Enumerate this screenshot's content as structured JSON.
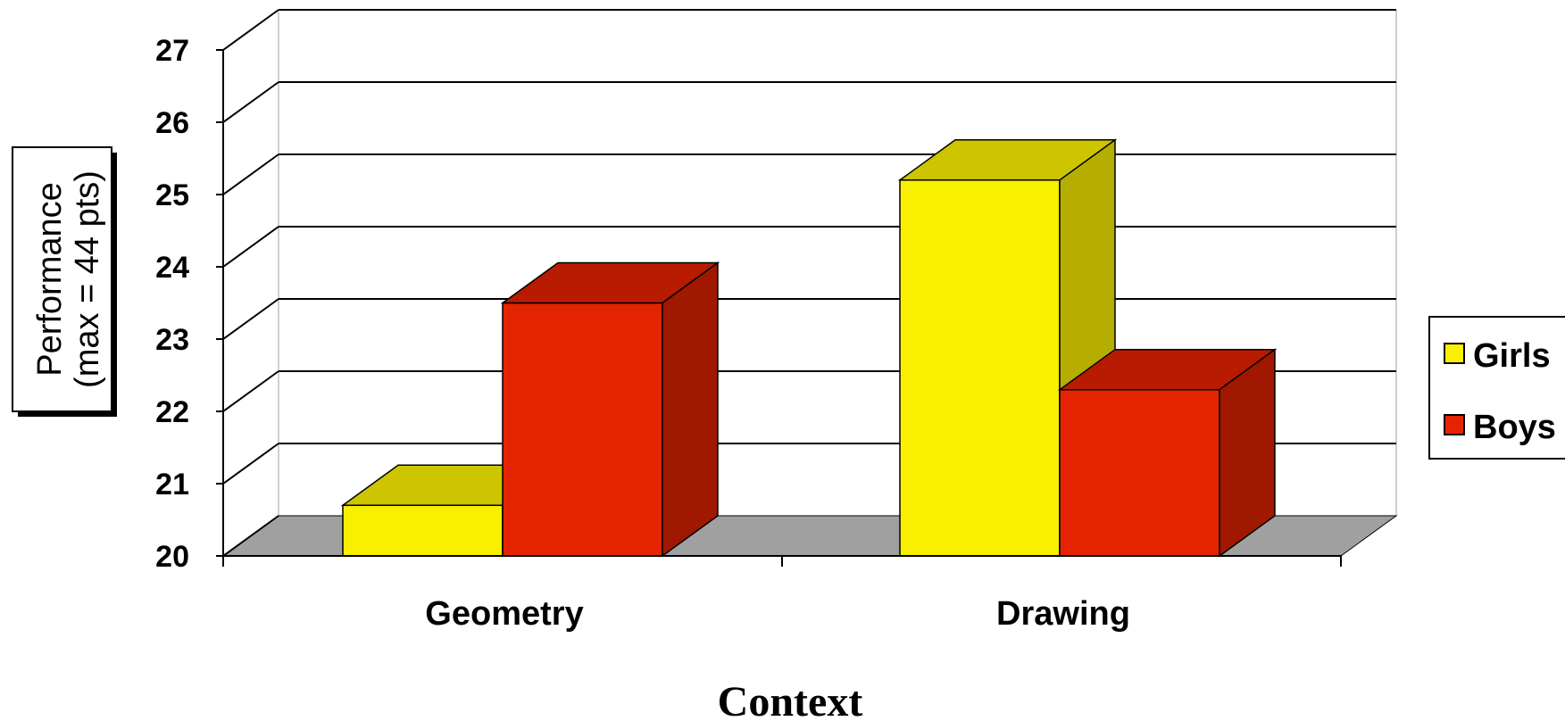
{
  "chart_data": {
    "type": "bar",
    "categories": [
      "Geometry",
      "Drawing"
    ],
    "series": [
      {
        "name": "Girls",
        "values": [
          20.7,
          25.2
        ]
      },
      {
        "name": "Boys",
        "values": [
          23.5,
          22.3
        ]
      }
    ],
    "xlabel": "Context",
    "ylabel": [
      "Performance",
      "(max = 44 pts)"
    ],
    "ylim": [
      20,
      27
    ],
    "yticks": [
      "20",
      "21",
      "22",
      "23",
      "24",
      "25",
      "26",
      "27"
    ],
    "grid": true,
    "legend_position": "right",
    "style": "3d",
    "colors": {
      "Girls": {
        "front": "#f8f000",
        "top": "#cdc500",
        "side": "#b5ad00"
      },
      "Boys": {
        "front": "#e42400",
        "top": "#b81b00",
        "side": "#a01800"
      },
      "floor": "#a0a0a0"
    }
  }
}
